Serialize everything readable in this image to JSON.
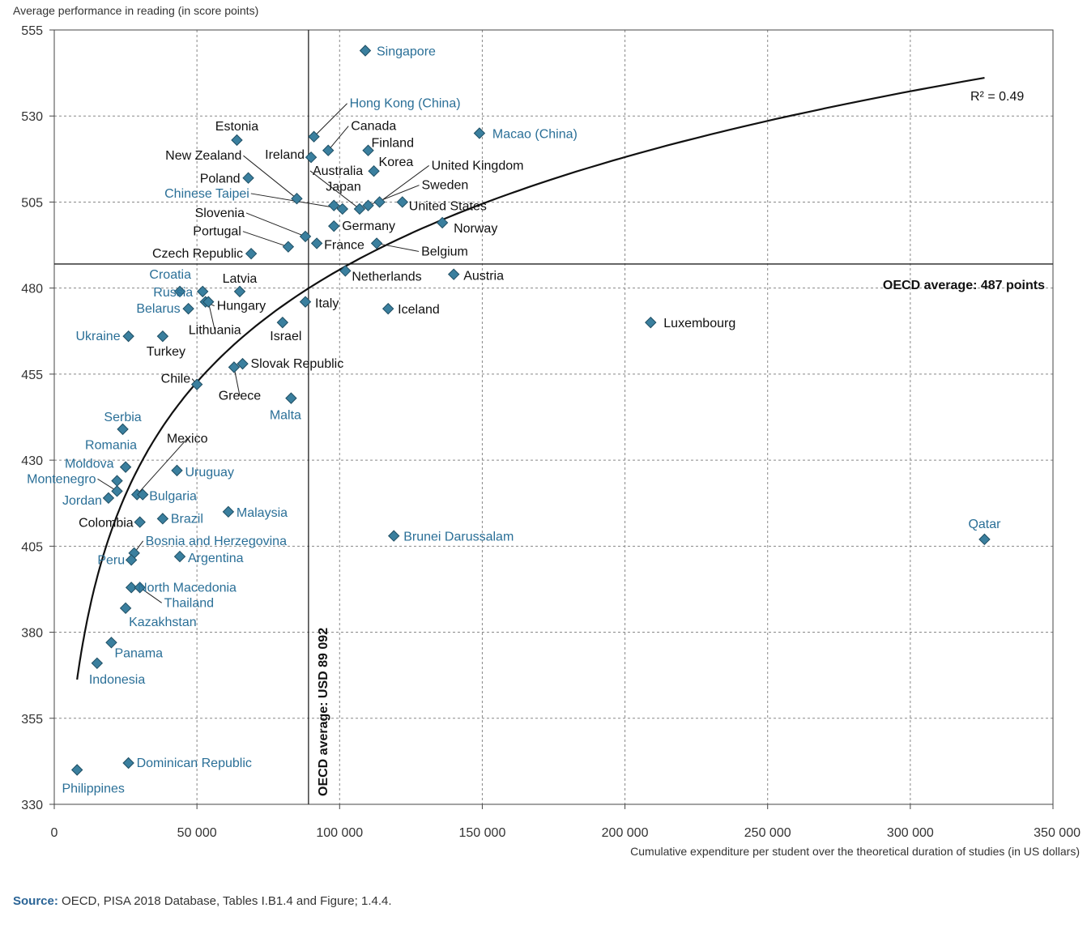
{
  "chart_data": {
    "type": "scatter",
    "ylabel": "Average performance in reading (in score points)",
    "xlabel": "Cumulative expenditure per student over the theoretical duration of studies (in US dollars)",
    "xlim": [
      0,
      350000
    ],
    "ylim": [
      330,
      555
    ],
    "x_ticks": [
      0,
      50000,
      100000,
      150000,
      200000,
      250000,
      300000,
      350000
    ],
    "x_tick_labels": [
      "0",
      "50 000",
      "100 000",
      "150 000",
      "200 000",
      "250 000",
      "300 000",
      "350 000"
    ],
    "y_ticks": [
      330,
      355,
      380,
      405,
      430,
      455,
      480,
      505,
      530,
      555
    ],
    "y_tick_labels": [
      "330",
      "355",
      "380",
      "405",
      "430",
      "455",
      "480",
      "505",
      "530",
      "555"
    ],
    "grid": true,
    "colors": {
      "point": "#3a7f9e",
      "point_stroke": "#1f4e63",
      "label_dark": "#111111",
      "label_blue": "#2a6f97",
      "curve": "#111111",
      "grid": "#888888"
    },
    "r2_label": "R² = 0.49",
    "oecd_avg_y": 487,
    "oecd_avg_y_label": "OECD average: 487 points",
    "oecd_avg_x": 89092,
    "oecd_avg_x_label": "OECD average: USD 89 092",
    "trend": {
      "type": "logarithmic",
      "x": [
        8000,
        25000,
        50000,
        89092,
        150000,
        250000,
        326000
      ],
      "y": [
        364,
        425,
        452,
        478,
        503,
        530,
        541
      ]
    },
    "points": [
      {
        "name": "Singapore",
        "x": 109000,
        "y": 549,
        "blue": true
      },
      {
        "name": "Macao (China)",
        "x": 149000,
        "y": 525,
        "blue": true
      },
      {
        "name": "Hong Kong (China)",
        "x": 91000,
        "y": 524,
        "blue": true
      },
      {
        "name": "Estonia",
        "x": 64000,
        "y": 523,
        "blue": false
      },
      {
        "name": "Canada",
        "x": 96000,
        "y": 520,
        "blue": false
      },
      {
        "name": "Finland",
        "x": 110000,
        "y": 520,
        "blue": false
      },
      {
        "name": "Ireland",
        "x": 90000,
        "y": 518,
        "blue": false
      },
      {
        "name": "Korea",
        "x": 112000,
        "y": 514,
        "blue": false
      },
      {
        "name": "Poland",
        "x": 68000,
        "y": 512,
        "blue": false
      },
      {
        "name": "New Zealand",
        "x": 85000,
        "y": 506,
        "blue": false
      },
      {
        "name": "Japan",
        "x": 98000,
        "y": 504,
        "blue": false
      },
      {
        "name": "Chinese Taipei",
        "x": 101000,
        "y": 503,
        "blue": true
      },
      {
        "name": "Australia",
        "x": 107000,
        "y": 503,
        "blue": false
      },
      {
        "name": "Sweden",
        "x": 110000,
        "y": 504,
        "blue": false
      },
      {
        "name": "United Kingdom",
        "x": 114000,
        "y": 505,
        "blue": false
      },
      {
        "name": "United States",
        "x": 122000,
        "y": 505,
        "blue": false
      },
      {
        "name": "Germany",
        "x": 98000,
        "y": 498,
        "blue": false
      },
      {
        "name": "Norway",
        "x": 136000,
        "y": 499,
        "blue": false
      },
      {
        "name": "Slovenia",
        "x": 88000,
        "y": 495,
        "blue": false
      },
      {
        "name": "Portugal",
        "x": 82000,
        "y": 492,
        "blue": false
      },
      {
        "name": "France",
        "x": 92000,
        "y": 493,
        "blue": false
      },
      {
        "name": "Belgium",
        "x": 113000,
        "y": 493,
        "blue": false
      },
      {
        "name": "Czech Republic",
        "x": 69000,
        "y": 490,
        "blue": false
      },
      {
        "name": "Netherlands",
        "x": 102000,
        "y": 485,
        "blue": false
      },
      {
        "name": "Austria",
        "x": 140000,
        "y": 484,
        "blue": false
      },
      {
        "name": "Croatia",
        "x": 44000,
        "y": 479,
        "blue": true
      },
      {
        "name": "Latvia",
        "x": 65000,
        "y": 479,
        "blue": false
      },
      {
        "name": "Russia",
        "x": 52000,
        "y": 479,
        "blue": true
      },
      {
        "name": "Hungary",
        "x": 53000,
        "y": 476,
        "blue": false
      },
      {
        "name": "Italy",
        "x": 88000,
        "y": 476,
        "blue": false
      },
      {
        "name": "Belarus",
        "x": 47000,
        "y": 474,
        "blue": true
      },
      {
        "name": "Lithuania",
        "x": 54000,
        "y": 476,
        "blue": false
      },
      {
        "name": "Iceland",
        "x": 117000,
        "y": 474,
        "blue": false
      },
      {
        "name": "Luxembourg",
        "x": 209000,
        "y": 470,
        "blue": false
      },
      {
        "name": "Israel",
        "x": 80000,
        "y": 470,
        "blue": false
      },
      {
        "name": "Ukraine",
        "x": 26000,
        "y": 466,
        "blue": true
      },
      {
        "name": "Turkey",
        "x": 38000,
        "y": 466,
        "blue": false
      },
      {
        "name": "Slovak Republic",
        "x": 66000,
        "y": 458,
        "blue": false
      },
      {
        "name": "Greece",
        "x": 63000,
        "y": 457,
        "blue": false
      },
      {
        "name": "Chile",
        "x": 50000,
        "y": 452,
        "blue": false
      },
      {
        "name": "Malta",
        "x": 83000,
        "y": 448,
        "blue": true
      },
      {
        "name": "Serbia",
        "x": 24000,
        "y": 439,
        "blue": true
      },
      {
        "name": "Romania",
        "x": 25000,
        "y": 428,
        "blue": true
      },
      {
        "name": "Uruguay",
        "x": 43000,
        "y": 427,
        "blue": true
      },
      {
        "name": "Moldova",
        "x": 22000,
        "y": 424,
        "blue": true
      },
      {
        "name": "Mexico",
        "x": 29000,
        "y": 420,
        "blue": false
      },
      {
        "name": "Bulgaria",
        "x": 31000,
        "y": 420,
        "blue": true
      },
      {
        "name": "Montenegro",
        "x": 22000,
        "y": 421,
        "blue": true
      },
      {
        "name": "Jordan",
        "x": 19000,
        "y": 419,
        "blue": true
      },
      {
        "name": "Malaysia",
        "x": 61000,
        "y": 415,
        "blue": true
      },
      {
        "name": "Colombia",
        "x": 30000,
        "y": 412,
        "blue": false
      },
      {
        "name": "Brazil",
        "x": 38000,
        "y": 413,
        "blue": true
      },
      {
        "name": "Brunei Darussalam",
        "x": 119000,
        "y": 408,
        "blue": true
      },
      {
        "name": "Qatar",
        "x": 326000,
        "y": 407,
        "blue": true
      },
      {
        "name": "Bosnia and Herzegovina",
        "x": 28000,
        "y": 403,
        "blue": true
      },
      {
        "name": "Argentina",
        "x": 44000,
        "y": 402,
        "blue": true
      },
      {
        "name": "Peru",
        "x": 27000,
        "y": 401,
        "blue": true
      },
      {
        "name": "North Macedonia",
        "x": 27000,
        "y": 393,
        "blue": true
      },
      {
        "name": "Thailand",
        "x": 30000,
        "y": 393,
        "blue": true
      },
      {
        "name": "Kazakhstan",
        "x": 25000,
        "y": 387,
        "blue": true
      },
      {
        "name": "Panama",
        "x": 20000,
        "y": 377,
        "blue": true
      },
      {
        "name": "Indonesia",
        "x": 15000,
        "y": 371,
        "blue": true
      },
      {
        "name": "Dominican Republic",
        "x": 26000,
        "y": 342,
        "blue": true
      },
      {
        "name": "Philippines",
        "x": 8000,
        "y": 340,
        "blue": true
      }
    ]
  },
  "footer": {
    "source_label": "Source:",
    "source_text": "OECD, PISA 2018 Database, Tables I.B1.4 and Figure; 1.4.4."
  }
}
